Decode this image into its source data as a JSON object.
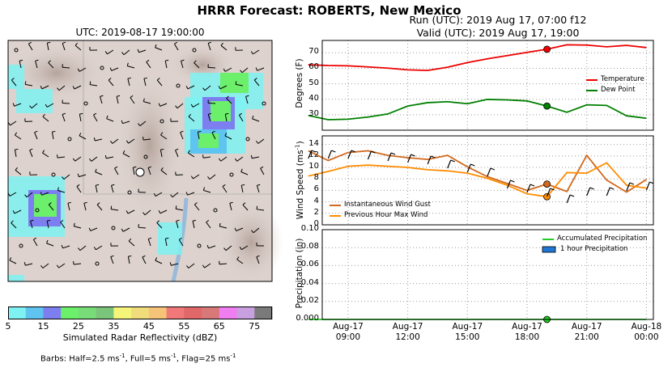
{
  "figure_title": "HRRR Forecast: ROBERTS, New Mexico",
  "run_line": "Run (UTC): 2019 Aug 17, 07:00 f12",
  "valid_line": "Valid (UTC): 2019 Aug 17, 19:00",
  "map": {
    "title": "UTC: 2019-08-17 19:00:00",
    "colorbar_label": "Simulated Radar Reflectivity (dBZ)",
    "colorbar_ticks": [
      "5",
      "15",
      "25",
      "35",
      "45",
      "55",
      "65",
      "75"
    ],
    "colorbar_colors": [
      "#7ef2f2",
      "#5fc4f0",
      "#7d7ef0",
      "#6cf06c",
      "#78dc78",
      "#7bc47b",
      "#f5f57a",
      "#f0dc7a",
      "#f5c478",
      "#f07878",
      "#e06868",
      "#d87878",
      "#f07ef0",
      "#c8a0e0",
      "#7a7a7a"
    ],
    "barbs_note": "Barbs: Half=2.5 ms",
    "barbs_note_parts": [
      "Barbs: Half=2.5 ms",
      "-1",
      ", Full=5 ms",
      "-1",
      ", Flag=25 ms",
      "-1"
    ]
  },
  "chart_data": [
    {
      "type": "line",
      "ylabel": "Degrees (F)",
      "ylim": [
        20,
        78
      ],
      "yticks": [
        30,
        40,
        50,
        60,
        70
      ],
      "x_hours": [
        7,
        8,
        9,
        10,
        11,
        12,
        13,
        14,
        15,
        16,
        17,
        18,
        19,
        20,
        21,
        22,
        23,
        24
      ],
      "series": [
        {
          "name": "Temperature",
          "color": "#ee0000",
          "values": [
            62.3,
            61.8,
            61.6,
            60.9,
            60.1,
            59,
            58.6,
            60.7,
            63.7,
            66.1,
            68.2,
            70.3,
            72.3,
            75.2,
            75,
            73.9,
            74.8,
            73.4
          ]
        },
        {
          "name": "Dew Point",
          "color": "#008000",
          "values": [
            29.5,
            26.8,
            27.1,
            28.5,
            30.5,
            35.6,
            37.8,
            38.4,
            37.1,
            39.9,
            39.6,
            38.9,
            35.6,
            31.6,
            36.4,
            36,
            29.3,
            27.7
          ]
        }
      ],
      "marker_x": 19,
      "legend_position": "right"
    },
    {
      "type": "line",
      "ylabel": "Wind Speed (ms",
      "ylabel_sup": "-1",
      "ylim": [
        0,
        15.5
      ],
      "yticks": [
        0,
        2,
        4,
        6,
        8,
        10,
        12,
        14
      ],
      "x_hours": [
        7,
        8,
        9,
        10,
        11,
        12,
        13,
        14,
        15,
        16,
        17,
        18,
        19,
        20,
        21,
        22,
        23,
        24
      ],
      "series": [
        {
          "name": "Instantaneous Wind Gust",
          "color": "#d26a1e",
          "values": [
            12.9,
            11.2,
            12.6,
            12.9,
            12.1,
            11.7,
            11.4,
            12.1,
            10.1,
            8.4,
            7.2,
            6,
            7.1,
            5.8,
            12.1,
            7.8,
            5.7,
            7.9
          ]
        },
        {
          "name": "Previous Hour Max Wind",
          "color": "#ff8c00",
          "values": [
            8.5,
            9.3,
            10.2,
            10.4,
            10.2,
            10,
            9.6,
            9.4,
            9,
            8.1,
            6.9,
            5.4,
            4.9,
            9.1,
            9,
            10.8,
            6.9,
            6.4
          ]
        }
      ],
      "marker_x": 19,
      "legend_position": "bottom-left"
    },
    {
      "type": "area",
      "ylabel": "Precipitation (in)",
      "ylim": [
        0,
        0.1
      ],
      "yticks": [
        "0.000",
        "0.02",
        "0.04",
        "0.06",
        "0.08",
        "0.10"
      ],
      "x_hours": [
        7,
        8,
        9,
        10,
        11,
        12,
        13,
        14,
        15,
        16,
        17,
        18,
        19,
        20,
        21,
        22,
        23,
        24
      ],
      "series": [
        {
          "name": "Accumulated Precipitation",
          "color": "#22cc22",
          "values": [
            0,
            0,
            0,
            0,
            0,
            0,
            0,
            0,
            0,
            0,
            0,
            0,
            0,
            0,
            0,
            0,
            0,
            0
          ]
        },
        {
          "name": "1 hour Precipitation",
          "color": "#1f77d4",
          "values": [
            0,
            0,
            0,
            0,
            0,
            0,
            0,
            0,
            0,
            0,
            0,
            0,
            0,
            0,
            0,
            0,
            0,
            0
          ]
        }
      ],
      "marker_x": 19,
      "legend_position": "top-right"
    }
  ],
  "x_axis": {
    "ticks": [
      {
        "hour": 9,
        "date": "Aug-17",
        "time": "09:00"
      },
      {
        "hour": 12,
        "date": "Aug-17",
        "time": "12:00"
      },
      {
        "hour": 15,
        "date": "Aug-17",
        "time": "15:00"
      },
      {
        "hour": 18,
        "date": "Aug-17",
        "time": "18:00"
      },
      {
        "hour": 21,
        "date": "Aug-17",
        "time": "21:00"
      },
      {
        "hour": 24,
        "date": "Aug-18",
        "time": "00:00"
      }
    ]
  }
}
